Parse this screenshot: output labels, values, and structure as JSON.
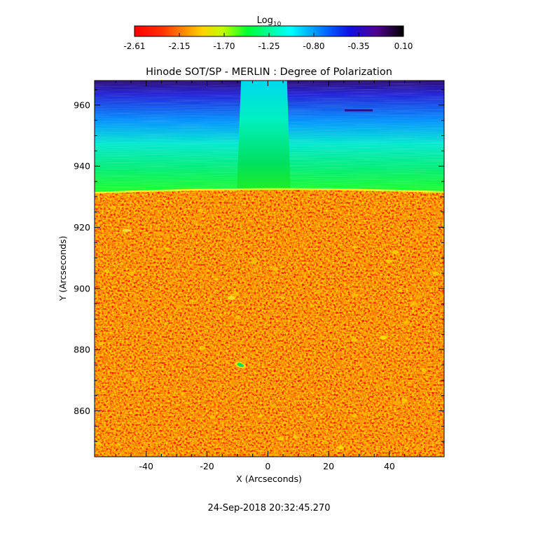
{
  "colorbar": {
    "label": "Log",
    "label_subscript": "10",
    "ticks": [
      "-2.61",
      "-2.15",
      "-1.70",
      "-1.25",
      "-0.80",
      "-0.35",
      "0.10"
    ],
    "range": [
      -2.61,
      0.1
    ]
  },
  "chart_data": {
    "type": "heatmap",
    "title": "Hinode SOT/SP - MERLIN : Degree of Polarization",
    "xlabel": "X (Arcseconds)",
    "ylabel": "Y (Arcseconds)",
    "xlim": [
      -57,
      58
    ],
    "ylim": [
      845,
      968
    ],
    "x_ticks": [
      -40,
      -20,
      0,
      20,
      40
    ],
    "y_ticks": [
      860,
      880,
      900,
      920,
      940,
      960
    ],
    "value_scale": "log10",
    "value_range": [
      -2.61,
      0.1
    ],
    "limb_y": 932,
    "bright_stripe_x": [
      -9.5,
      7
    ],
    "colormap": [
      "#ff0000",
      "#ff8000",
      "#ffff00",
      "#00ff00",
      "#00ffff",
      "#0000ff",
      "#400080",
      "#000000"
    ]
  },
  "footer": {
    "timestamp": "24-Sep-2018 20:32:45.270"
  }
}
